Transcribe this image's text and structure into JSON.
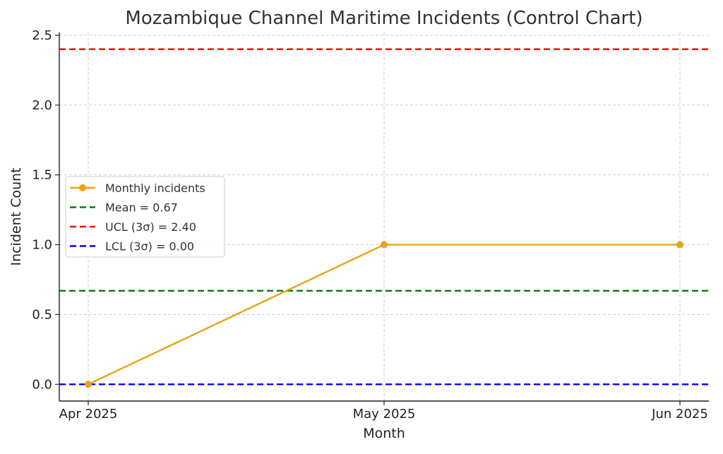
{
  "chart_data": {
    "type": "line",
    "title": "Mozambique Channel Maritime Incidents (Control Chart)",
    "xlabel": "Month",
    "ylabel": "Incident Count",
    "categories": [
      "Apr 2025",
      "May 2025",
      "Jun 2025"
    ],
    "series": [
      {
        "name": "Monthly incidents",
        "values": [
          0,
          1,
          1
        ],
        "color": "#e8a317"
      }
    ],
    "reference_lines": [
      {
        "name": "Mean = 0.67",
        "value": 0.67,
        "color": "#008000"
      },
      {
        "name": "UCL (3σ) = 2.40",
        "value": 2.4,
        "color": "#ff0000"
      },
      {
        "name": "LCL (3σ) = 0.00",
        "value": 0.0,
        "color": "#0000ff"
      }
    ],
    "yticks": [
      "0.0",
      "0.5",
      "1.0",
      "1.5",
      "2.0",
      "2.5"
    ],
    "ylim": [
      -0.12,
      2.52
    ],
    "grid": true,
    "legend_position": "center-left"
  }
}
